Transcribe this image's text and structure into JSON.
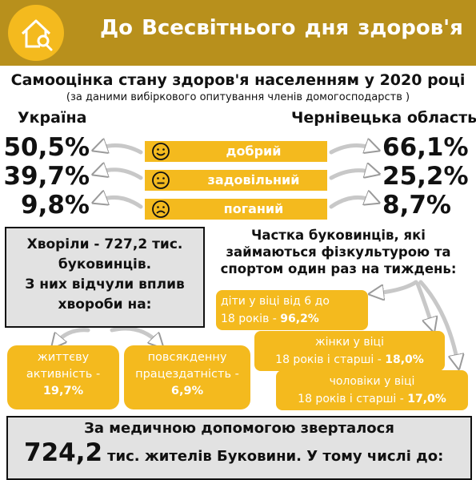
{
  "header": {
    "title": "До  Всесвітнього дня здоров'я",
    "icon": "house-search-icon"
  },
  "subtitle": "Самооцінка стану здоров'я населенням у 2020 році",
  "note": "(за даними вибіркового опитування членів домогосподарств )",
  "regions": {
    "left": "Україна",
    "right": "Чернівецька область"
  },
  "ratings": [
    {
      "label": "добрий",
      "icon": "smile-icon",
      "left": "50,5%",
      "right": "66,1%"
    },
    {
      "label": "задовільний",
      "icon": "neutral-face-icon",
      "left": "39,7%",
      "right": "25,2%"
    },
    {
      "label": "поганий",
      "icon": "sad-face-icon",
      "left": "9,8%",
      "right": "8,7%"
    }
  ],
  "colors": {
    "header": "#b8901c",
    "accent": "#f4ba1e",
    "box": "#e2e2e2",
    "arrow": "#c8c8c8"
  },
  "sick": {
    "line1": "Хворіли - 727,2 тис.",
    "line2": "буковинців.",
    "line3": "З них відчули вплив",
    "line4": "хвороби на:"
  },
  "impact": {
    "life": {
      "line1": "життєву",
      "line2": "активність -",
      "value": "19,7%"
    },
    "work": {
      "line1": "повсякденну",
      "line2": "працездатність -",
      "value": "6,9%"
    }
  },
  "sport": {
    "title_line1": "Частка буковинців, які",
    "title_line2": "займаються фізкультурою та",
    "title_line3": "спортом один раз на тиждень:",
    "kids": {
      "line1": "діти у віці від 6 до",
      "line2": "18 років - ",
      "value": "96,2%"
    },
    "women": {
      "line1": "жінки у віці",
      "line2": "18 років і старші - ",
      "value": "18,0%"
    },
    "men": {
      "line1": "чоловіки у віці",
      "line2": "18 років і старші - ",
      "value": "17,0%"
    }
  },
  "medical": {
    "line1": "За медичною допомогою зверталося",
    "number": "724,2",
    "line2_rest": "тис. жителів Буковини. У тому числі до:"
  }
}
